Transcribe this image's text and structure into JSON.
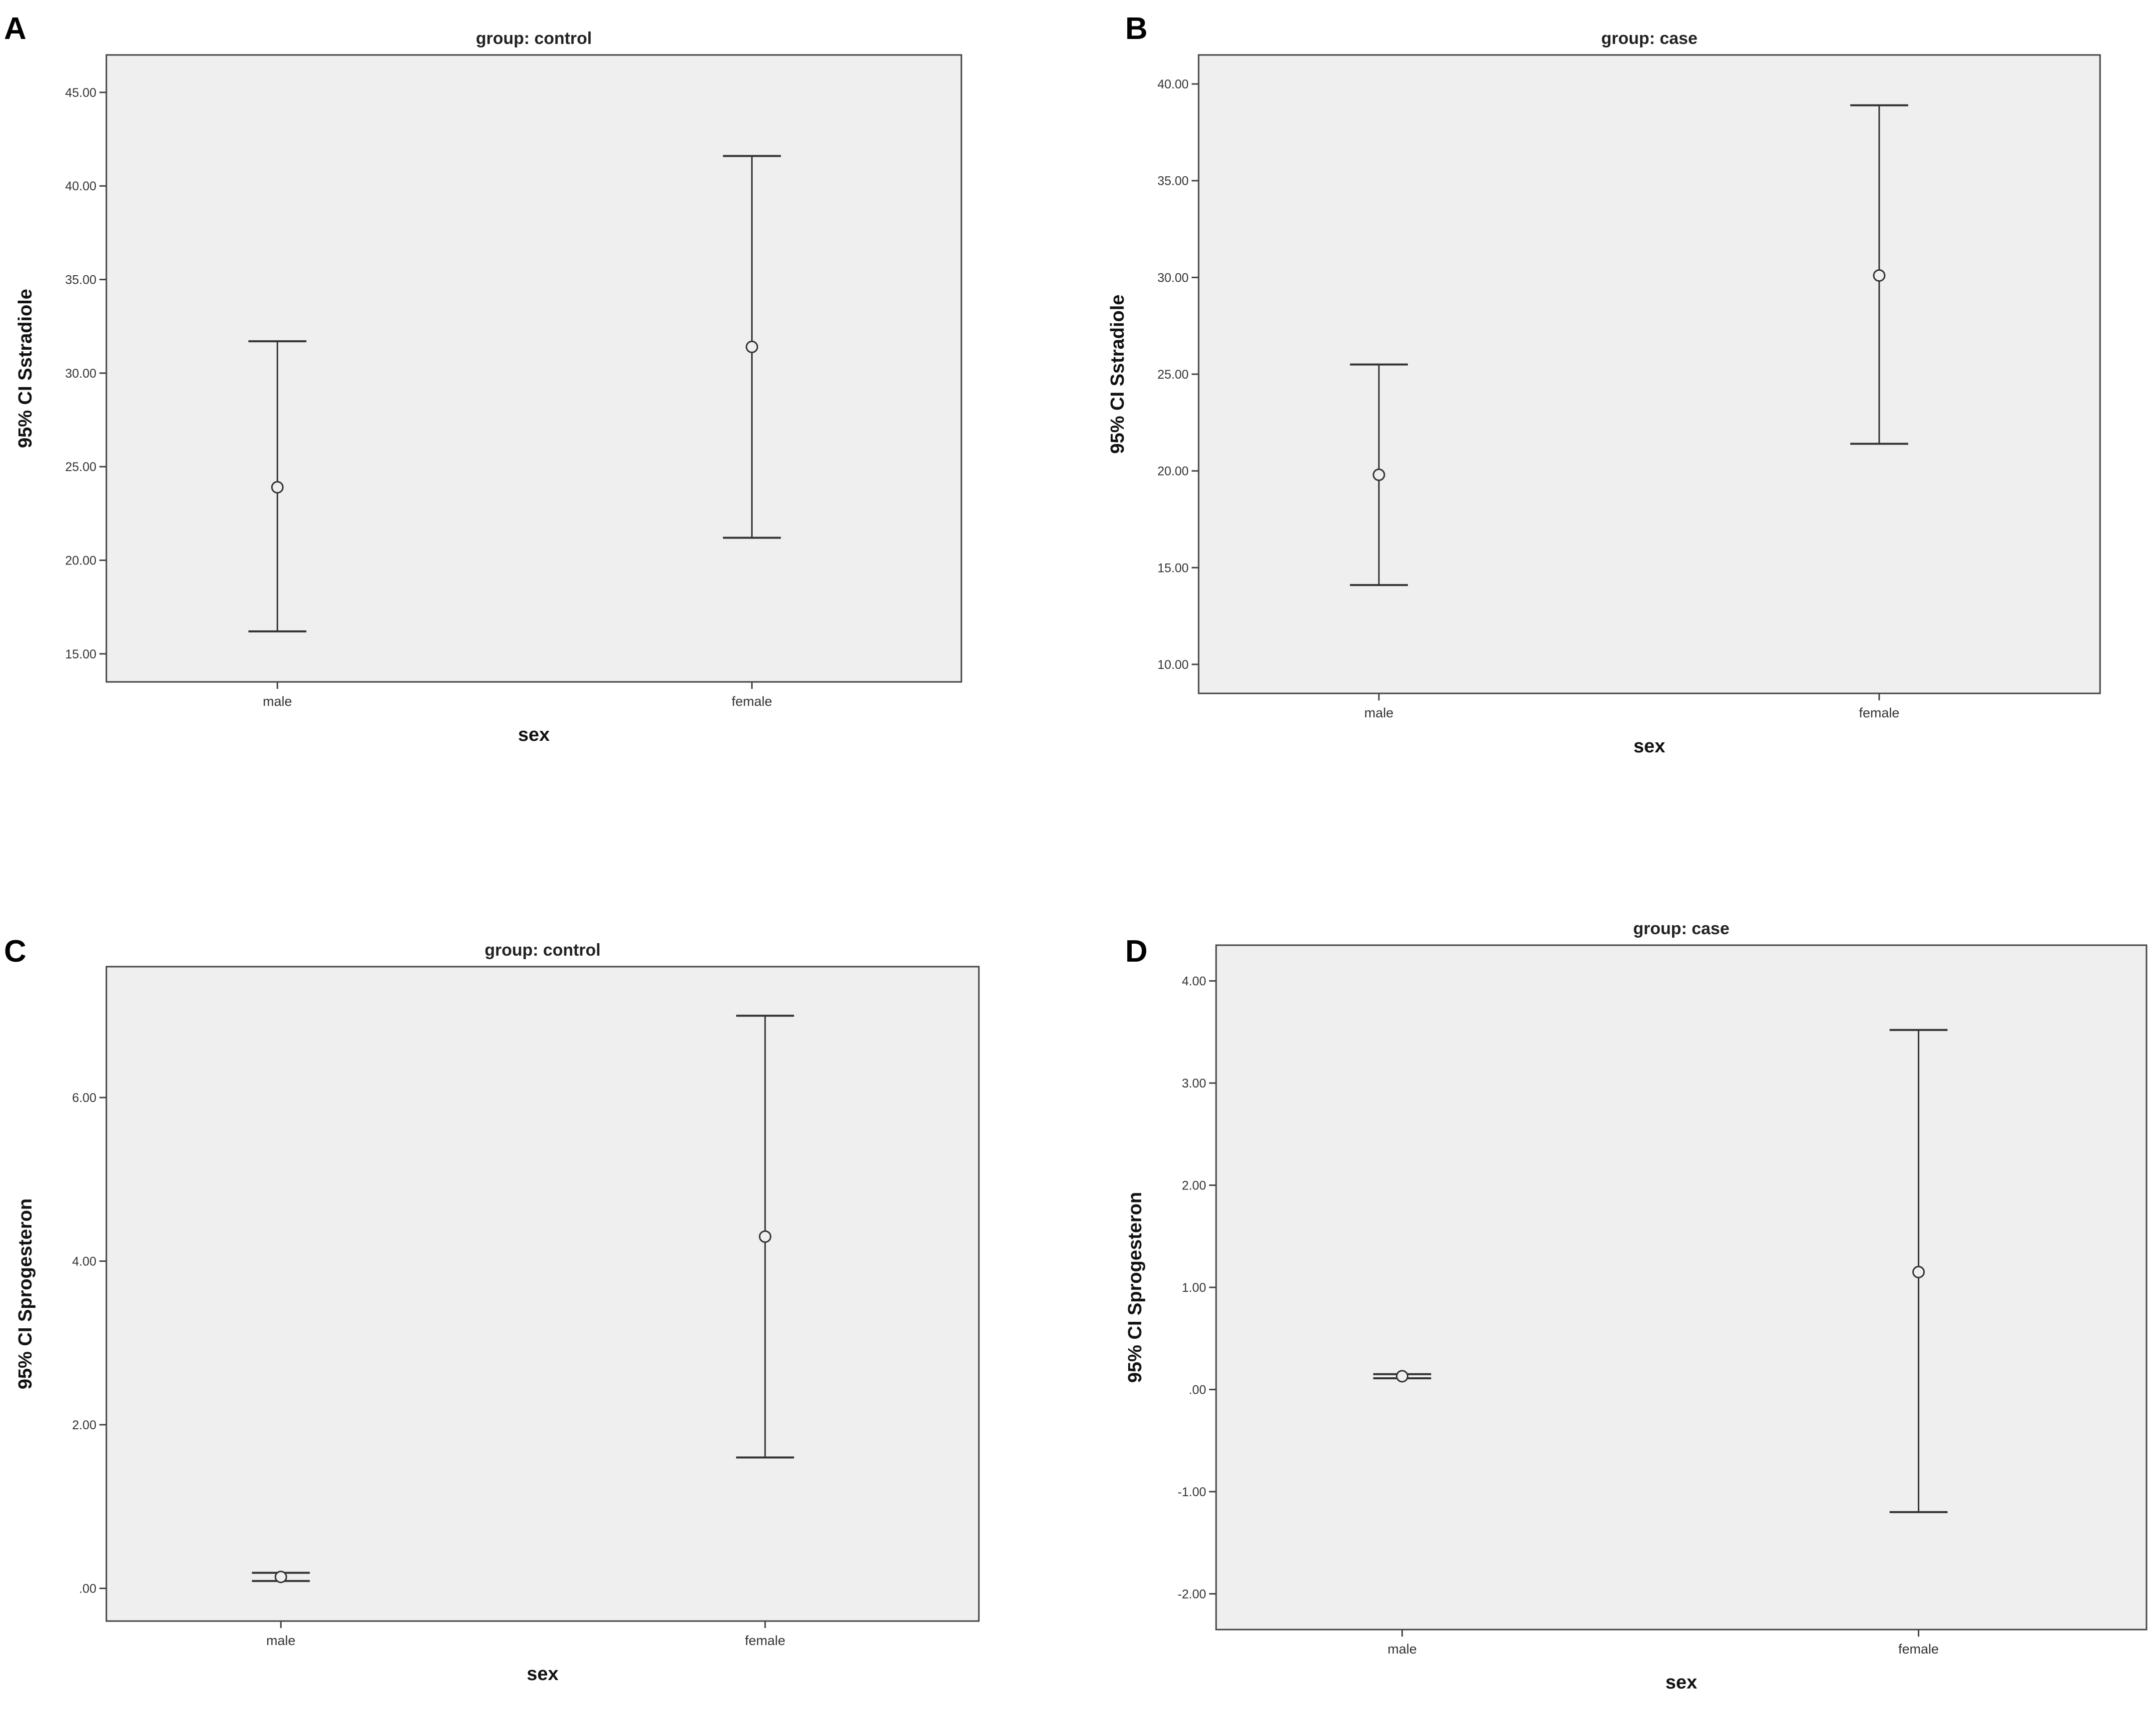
{
  "chart_data": [
    {
      "panel": "A",
      "type": "errorbar",
      "title": "group: control",
      "xlabel": "sex",
      "ylabel": "95% CI Sstradiole",
      "categories": [
        "male",
        "female"
      ],
      "ylim": [
        13.5,
        47.0
      ],
      "yticks": [
        15,
        20,
        25,
        30,
        35,
        40,
        45
      ],
      "tick_labels": [
        "15.00",
        "20.00",
        "25.00",
        "30.00",
        "35.00",
        "40.00",
        "45.00"
      ],
      "means": [
        23.9,
        31.4
      ],
      "lower": [
        16.2,
        21.2
      ],
      "upper": [
        31.7,
        41.6
      ]
    },
    {
      "panel": "B",
      "type": "errorbar",
      "title": "group: case",
      "xlabel": "sex",
      "ylabel": "95% CI Sstradiole",
      "categories": [
        "male",
        "female"
      ],
      "ylim": [
        8.5,
        41.5
      ],
      "yticks": [
        10,
        15,
        20,
        25,
        30,
        35,
        40
      ],
      "tick_labels": [
        "10.00",
        "15.00",
        "20.00",
        "25.00",
        "30.00",
        "35.00",
        "40.00"
      ],
      "means": [
        19.8,
        30.1
      ],
      "lower": [
        14.1,
        21.4
      ],
      "upper": [
        25.5,
        38.9
      ]
    },
    {
      "panel": "C",
      "type": "errorbar",
      "title": "group: control",
      "xlabel": "sex",
      "ylabel": "95% CI Sprogesteron",
      "categories": [
        "male",
        "female"
      ],
      "ylim": [
        -0.4,
        7.6
      ],
      "yticks": [
        0,
        2,
        4,
        6
      ],
      "tick_labels": [
        ".00",
        "2.00",
        "4.00",
        "6.00"
      ],
      "means": [
        0.14,
        4.3
      ],
      "lower": [
        0.09,
        1.6
      ],
      "upper": [
        0.19,
        7.0
      ]
    },
    {
      "panel": "D",
      "type": "errorbar",
      "title": "group: case",
      "xlabel": "sex",
      "ylabel": "95% CI Sprogesteron",
      "categories": [
        "male",
        "female"
      ],
      "ylim": [
        -2.35,
        4.35
      ],
      "yticks": [
        -2,
        -1,
        0,
        1,
        2,
        3,
        4
      ],
      "tick_labels": [
        "-2.00",
        "-1.00",
        ".00",
        "1.00",
        "2.00",
        "3.00",
        "4.00"
      ],
      "means": [
        0.13,
        1.15
      ],
      "lower": [
        0.11,
        -1.2
      ],
      "upper": [
        0.15,
        3.52
      ]
    }
  ]
}
